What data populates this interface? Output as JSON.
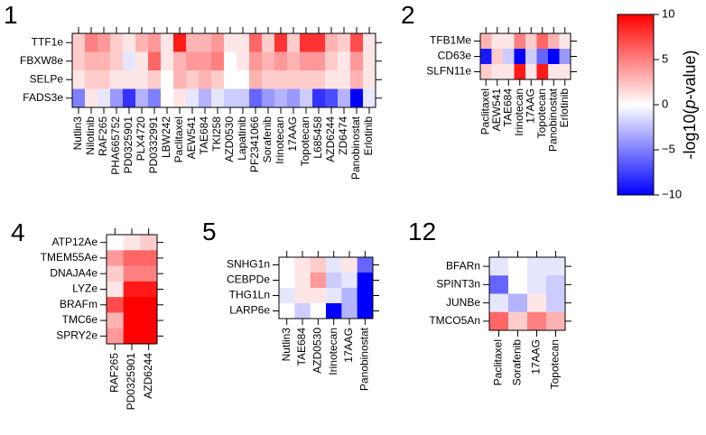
{
  "chart_data": {
    "type": "heatmap",
    "value_range": [
      -10,
      10
    ],
    "colorbar": {
      "label_prefix": "-log10(",
      "label_italic": "p",
      "label_suffix": "-value)",
      "ticks": [
        "10",
        "5",
        "0",
        "−5",
        "−10"
      ],
      "tick_values": [
        10,
        5,
        0,
        -5,
        -10
      ],
      "colors": {
        "low": "#0000ff",
        "mid": "#ffffff",
        "high": "#ff0000"
      }
    },
    "panels": [
      {
        "title": "1",
        "rows": [
          "TTF1e",
          "FBXW8e",
          "SELPe",
          "FADS3e"
        ],
        "cols": [
          "Nutlin3",
          "Nilotinib",
          "RAF265",
          "PHA665752",
          "PD0325901",
          "PLX4720",
          "PD0332991",
          "LBW242",
          "Paclitaxel",
          "AEW541",
          "TAE684",
          "TKI258",
          "AZD0530",
          "Lapatinib",
          "PF2341066",
          "Sorafenib",
          "Irinotecan",
          "17AAG",
          "Topotecan",
          "L685458",
          "AZD6244",
          "ZD6474",
          "Panobinostat",
          "Erlotinib"
        ],
        "values": [
          [
            2,
            5,
            4,
            2,
            1,
            3,
            4,
            1,
            9,
            3,
            3,
            4,
            1,
            1,
            6,
            2,
            8,
            2,
            8,
            8,
            3,
            2,
            7,
            1
          ],
          [
            2,
            3,
            3,
            2,
            -1,
            1,
            6,
            1,
            3,
            4,
            4,
            5,
            0,
            1,
            4,
            3,
            4,
            3,
            4,
            4,
            2,
            1,
            4,
            1
          ],
          [
            1,
            2,
            2,
            1,
            1,
            1,
            2,
            0,
            3,
            2,
            3,
            2,
            0,
            0,
            3,
            2,
            2,
            2,
            2,
            2,
            1,
            1,
            3,
            1
          ],
          [
            -5,
            1,
            -1,
            -4,
            -8,
            -3,
            -5,
            0,
            1,
            -1,
            -3,
            -1,
            -2,
            -2,
            -6,
            -4,
            -3,
            -4,
            -2,
            -8,
            -7,
            -3,
            -10,
            -1
          ]
        ]
      },
      {
        "title": "2",
        "rows": [
          "TFB1Me",
          "CD63e",
          "SLFN11e"
        ],
        "cols": [
          "Paclitaxel",
          "AEW541",
          "TAE684",
          "Irinotecan",
          "17AAG",
          "Topotecan",
          "Panobinostat",
          "Erlotinib"
        ],
        "values": [
          [
            3,
            1,
            1,
            5,
            2,
            6,
            3,
            1
          ],
          [
            -9,
            2,
            -2,
            -10,
            -2,
            -6,
            -10,
            -4
          ],
          [
            2,
            1,
            1,
            9,
            1,
            9,
            1,
            1
          ]
        ]
      },
      {
        "title": "4",
        "rows": [
          "ATP12Ae",
          "TMEM55Ae",
          "DNAJA4e",
          "LYZe",
          "BRAFm",
          "TMC6e",
          "SPRY2e"
        ],
        "cols": [
          "RAF265",
          "PD0325901",
          "AZD6244"
        ],
        "values": [
          [
            0,
            1,
            2
          ],
          [
            4,
            6,
            6
          ],
          [
            2,
            5,
            5
          ],
          [
            1,
            9,
            9
          ],
          [
            7,
            10,
            10
          ],
          [
            3,
            10,
            10
          ],
          [
            4,
            10,
            10
          ]
        ]
      },
      {
        "title": "5",
        "rows": [
          "SNHG1n",
          "CEBPDe",
          "THG1Ln",
          "LARP6e"
        ],
        "cols": [
          "Nutlin3",
          "TAE684",
          "AZD0530",
          "Irinotecan",
          "17AAG",
          "Panobinostat"
        ],
        "values": [
          [
            0,
            1,
            2,
            -1,
            1,
            -6
          ],
          [
            0,
            1,
            4,
            -2,
            -1,
            -10
          ],
          [
            -1,
            1,
            1,
            -1,
            -3,
            -10
          ],
          [
            0,
            -2,
            0,
            -10,
            -3,
            -10
          ]
        ]
      },
      {
        "title": "12",
        "rows": [
          "BFARn",
          "SPINT3n",
          "JUNBe",
          "TMCO5An"
        ],
        "cols": [
          "Paclitaxel",
          "Sorafenib",
          "17AAG",
          "Topotecan"
        ],
        "values": [
          [
            -1,
            0,
            -1,
            -1
          ],
          [
            -6,
            0,
            -1,
            -2
          ],
          [
            -1,
            -3,
            1,
            -2
          ],
          [
            6,
            2,
            5,
            3
          ]
        ]
      }
    ]
  }
}
